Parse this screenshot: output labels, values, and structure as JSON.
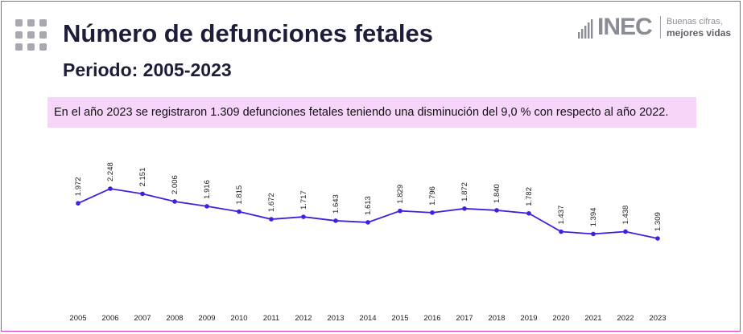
{
  "header": {
    "title": "Número de defunciones fetales",
    "subtitle": "Periodo: 2005-2023"
  },
  "logo": {
    "name": "INEC",
    "tagline_1": "Buenas cifras,",
    "tagline_2": "mejores vidas"
  },
  "notice": {
    "text": "En el año 2023 se registraron 1.309 defunciones fetales teniendo una disminución del 9,0 % con respecto al año 2022."
  },
  "colors": {
    "line": "#3b22e0",
    "border": "#d935c6",
    "notice_bg": "#f7d4f9",
    "title": "#1d1d3a"
  },
  "chart_data": {
    "type": "line",
    "title": "Número de defunciones fetales",
    "xlabel": "",
    "ylabel": "",
    "grid": false,
    "legend": "none",
    "ylim": [
      0,
      2500
    ],
    "categories": [
      "2005",
      "2006",
      "2007",
      "2008",
      "2009",
      "2010",
      "2011",
      "2012",
      "2013",
      "2014",
      "2015",
      "2016",
      "2017",
      "2018",
      "2019",
      "2020",
      "2021",
      "2022",
      "2023"
    ],
    "series": [
      {
        "name": "Defunciones fetales",
        "values": [
          1972,
          2248,
          2151,
          2006,
          1916,
          1815,
          1672,
          1717,
          1643,
          1613,
          1829,
          1796,
          1872,
          1840,
          1782,
          1437,
          1394,
          1438,
          1309
        ],
        "labels": [
          "1.972",
          "2.248",
          "2.151",
          "2.006",
          "1.916",
          "1.815",
          "1.672",
          "1.717",
          "1.643",
          "1.613",
          "1.829",
          "1.796",
          "1.872",
          "1.840",
          "1.782",
          "1.437",
          "1.394",
          "1.438",
          "1.309"
        ]
      }
    ]
  }
}
